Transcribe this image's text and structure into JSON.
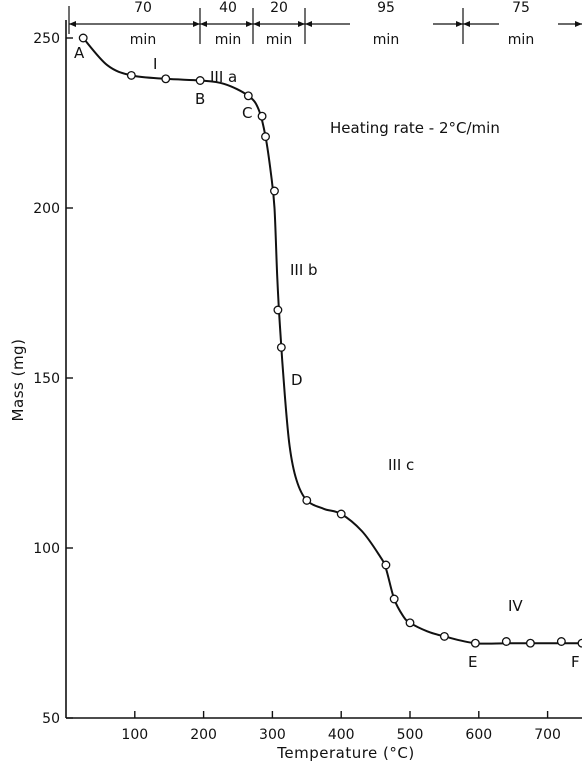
{
  "chart_data": {
    "type": "line",
    "xlabel": "Temperature (°C)",
    "ylabel": "Mass (mg)",
    "annotation": "Heating rate - 2°C/min",
    "xlim": [
      0,
      750
    ],
    "ylim": [
      50,
      255
    ],
    "x_ticks": [
      100,
      200,
      300,
      400,
      500,
      600,
      700
    ],
    "y_ticks": [
      50,
      100,
      150,
      200,
      250
    ],
    "points": [
      [
        25,
        250
      ],
      [
        95,
        239
      ],
      [
        145,
        238
      ],
      [
        195,
        237.5
      ],
      [
        265,
        233
      ],
      [
        285,
        227
      ],
      [
        290,
        221
      ],
      [
        303,
        205
      ],
      [
        308,
        170
      ],
      [
        313,
        159
      ],
      [
        350,
        114
      ],
      [
        400,
        110
      ],
      [
        465,
        95
      ],
      [
        477,
        85
      ],
      [
        500,
        78
      ],
      [
        550,
        74
      ],
      [
        595,
        72
      ],
      [
        640,
        72.5
      ],
      [
        675,
        72
      ],
      [
        720,
        72.5
      ],
      [
        750,
        72
      ]
    ],
    "curve": [
      [
        25,
        250
      ],
      [
        60,
        242
      ],
      [
        95,
        239
      ],
      [
        145,
        238
      ],
      [
        195,
        237.5
      ],
      [
        230,
        236.5
      ],
      [
        265,
        233
      ],
      [
        280,
        229
      ],
      [
        290,
        221
      ],
      [
        298,
        210
      ],
      [
        303,
        200
      ],
      [
        307,
        180
      ],
      [
        311,
        165
      ],
      [
        318,
        145
      ],
      [
        325,
        130
      ],
      [
        335,
        120
      ],
      [
        350,
        114
      ],
      [
        375,
        111.5
      ],
      [
        400,
        110
      ],
      [
        430,
        105
      ],
      [
        455,
        98
      ],
      [
        465,
        94
      ],
      [
        477,
        85
      ],
      [
        490,
        80
      ],
      [
        500,
        78
      ],
      [
        525,
        75.5
      ],
      [
        550,
        74
      ],
      [
        595,
        72
      ],
      [
        650,
        72
      ],
      [
        750,
        72
      ]
    ],
    "labels": {
      "A": "A",
      "B": "B",
      "C": "C",
      "D": "D",
      "E": "E",
      "F": "F",
      "I": "I",
      "IIIa": "III a",
      "IIIb": "III b",
      "IIIc": "III c",
      "IV": "IV"
    },
    "durations": [
      {
        "value": "70",
        "unit": "min"
      },
      {
        "value": "40",
        "unit": "min"
      },
      {
        "value": "20",
        "unit": "min"
      },
      {
        "value": "95",
        "unit": "min"
      },
      {
        "value": "75",
        "unit": "min"
      }
    ]
  }
}
